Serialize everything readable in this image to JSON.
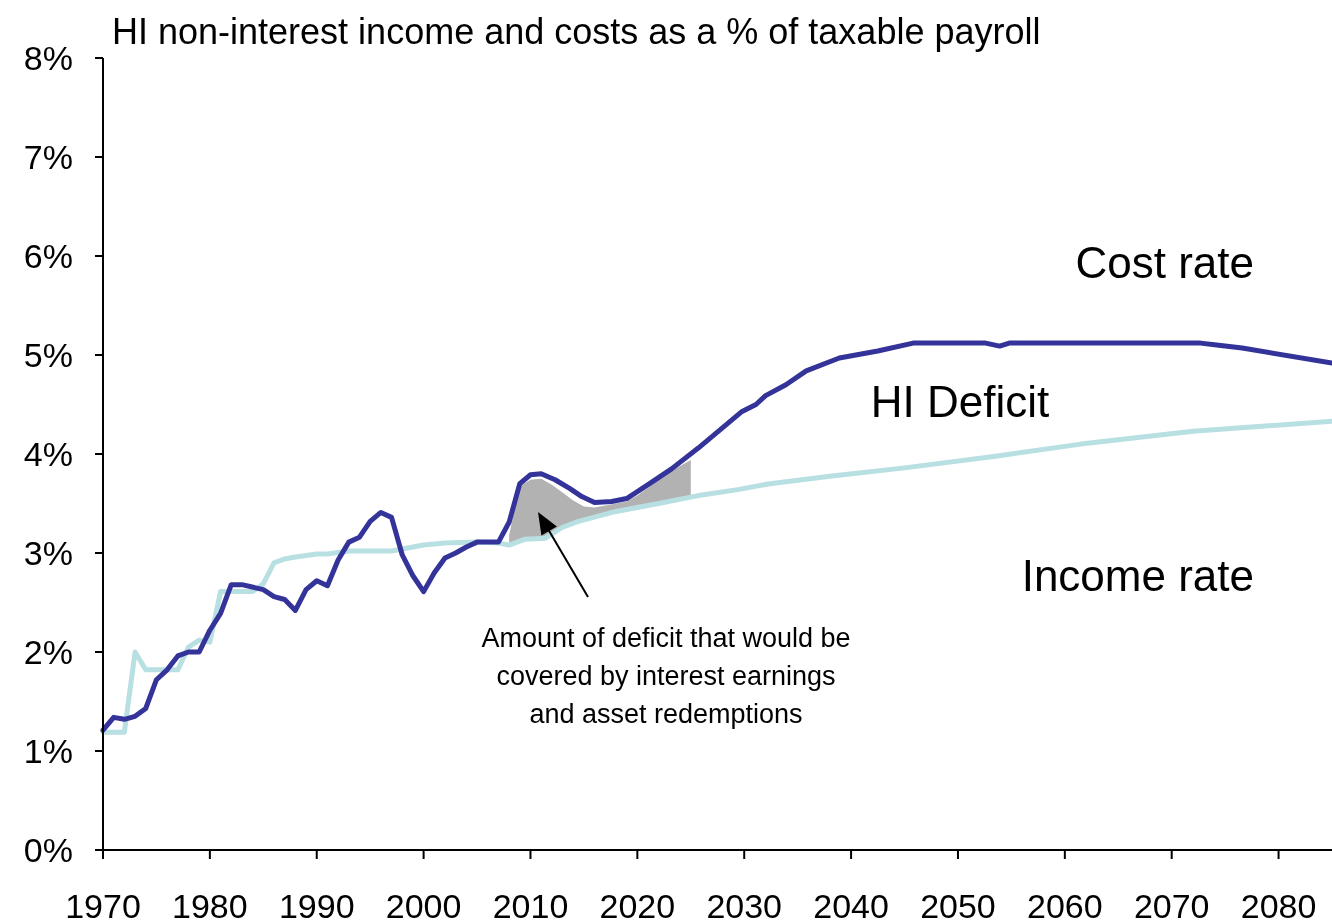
{
  "chart_data": {
    "type": "line",
    "title": "HI non-interest income and costs as a % of taxable payroll",
    "xlim": [
      1970,
      2085
    ],
    "xticks": [
      1970,
      1980,
      1990,
      2000,
      2010,
      2020,
      2030,
      2040,
      2050,
      2060,
      2070,
      2080
    ],
    "ylim": [
      0,
      8
    ],
    "yticks": [
      {
        "value": 0,
        "label": "0%"
      },
      {
        "value": 1,
        "label": "1%"
      },
      {
        "value": 2,
        "label": "2%"
      },
      {
        "value": 3,
        "label": "3%"
      },
      {
        "value": 4,
        "label": "4%"
      },
      {
        "value": 5,
        "label": "5%"
      },
      {
        "value": 6,
        "label": "6%"
      },
      {
        "value": 7,
        "label": "7%"
      },
      {
        "value": 8,
        "label": "8%"
      }
    ],
    "grid": false,
    "marker": "none",
    "line_style": "solid",
    "series": [
      {
        "type": "area",
        "color": "#b2b2b2",
        "x": [
          2008,
          2009,
          2010,
          2011,
          2012,
          2013,
          2014,
          2015,
          2016,
          2017,
          2018,
          2019,
          2020,
          2021,
          2022,
          2023,
          2024,
          2025
        ],
        "values": [
          3.18,
          3.68,
          3.74,
          3.75,
          3.69,
          3.61,
          3.53,
          3.47,
          3.46,
          3.48,
          3.5,
          3.52,
          3.58,
          3.66,
          3.74,
          3.82,
          3.88,
          3.94
        ]
      },
      {
        "name": "Income rate",
        "color": "#b8e0e3",
        "x": [
          1970,
          1972,
          1973,
          1974,
          1977,
          1978,
          1979,
          1980,
          1981,
          1984,
          1985,
          1986,
          1987,
          1988,
          1990,
          1991,
          1993,
          1997,
          2000,
          2002,
          2005,
          2007,
          2008,
          2009.5,
          2011.4,
          2013,
          2014.5,
          2018,
          2022,
          2025.7,
          2029.4,
          2032.4,
          2038.4,
          2045,
          2053.7,
          2061.5,
          2072,
          2085
        ],
        "values": [
          1.19,
          1.19,
          2.0,
          1.82,
          1.82,
          2.05,
          2.12,
          2.1,
          2.61,
          2.61,
          2.69,
          2.9,
          2.94,
          2.96,
          2.99,
          2.99,
          3.02,
          3.02,
          3.08,
          3.1,
          3.11,
          3.1,
          3.08,
          3.14,
          3.15,
          3.26,
          3.32,
          3.42,
          3.5,
          3.58,
          3.64,
          3.7,
          3.78,
          3.86,
          3.98,
          4.1,
          4.23,
          4.33
        ]
      },
      {
        "name": "Cost rate",
        "color": "#333399",
        "x": [
          1970,
          1971,
          1972,
          1973,
          1974,
          1975,
          1976,
          1977,
          1978,
          1979,
          1980,
          1981,
          1982,
          1983,
          1985,
          1986,
          1987,
          1988,
          1989,
          1990,
          1991,
          1992,
          1993,
          1994,
          1995,
          1996,
          1997,
          1998,
          1999,
          2000,
          2001,
          2002,
          2003,
          2004,
          2005,
          2007,
          2008,
          2009,
          2010,
          2011,
          2012.3,
          2013.7,
          2014.8,
          2016,
          2017.6,
          2019,
          2021,
          2023.2,
          2025.7,
          2029.8,
          2031.1,
          2032,
          2033.9,
          2035.8,
          2038.9,
          2042.5,
          2045.8,
          2052.6,
          2053.9,
          2054.8,
          2072.7,
          2074.2,
          2076.6,
          2085
        ],
        "values": [
          1.21,
          1.34,
          1.32,
          1.35,
          1.43,
          1.72,
          1.82,
          1.96,
          2.0,
          2.0,
          2.22,
          2.39,
          2.68,
          2.68,
          2.63,
          2.56,
          2.53,
          2.42,
          2.63,
          2.72,
          2.67,
          2.93,
          3.11,
          3.16,
          3.32,
          3.41,
          3.36,
          2.98,
          2.77,
          2.61,
          2.8,
          2.95,
          3.0,
          3.06,
          3.11,
          3.11,
          3.31,
          3.7,
          3.79,
          3.8,
          3.74,
          3.65,
          3.57,
          3.51,
          3.52,
          3.55,
          3.69,
          3.85,
          4.06,
          4.43,
          4.5,
          4.59,
          4.7,
          4.84,
          4.97,
          5.04,
          5.12,
          5.12,
          5.09,
          5.12,
          5.12,
          5.1,
          5.07,
          4.92
        ]
      }
    ],
    "annotations": [
      "HI Deficit",
      "Amount of deficit that would be covered by interest earnings and asset redemptions"
    ]
  }
}
